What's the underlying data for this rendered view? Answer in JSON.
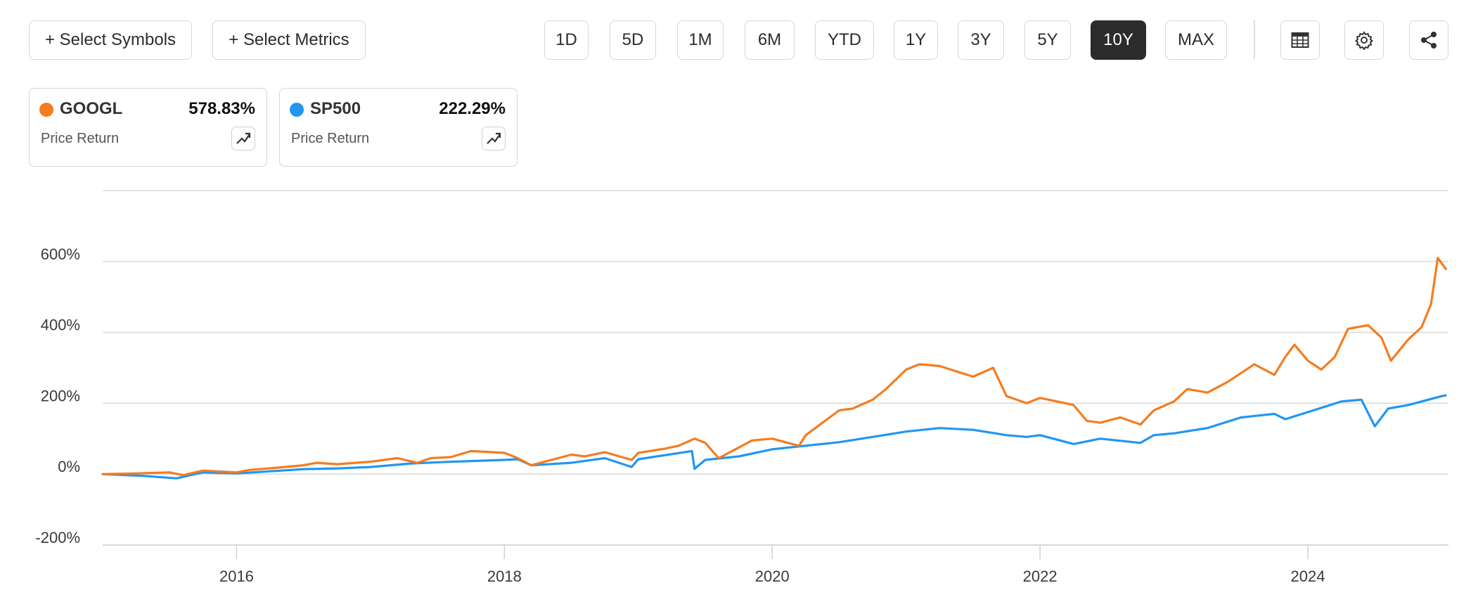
{
  "toolbar": {
    "select_symbols": "+ Select Symbols",
    "select_metrics": "+ Select Metrics",
    "ranges": [
      "1D",
      "5D",
      "1M",
      "6M",
      "YTD",
      "1Y",
      "3Y",
      "5Y",
      "10Y",
      "MAX"
    ],
    "active_range": "10Y",
    "icons": [
      "table-icon",
      "gear-icon",
      "share-icon"
    ]
  },
  "legend": [
    {
      "symbol": "GOOGL",
      "value": "578.83%",
      "metric": "Price Return",
      "color": "#f57c1f"
    },
    {
      "symbol": "SP500",
      "value": "222.29%",
      "metric": "Price Return",
      "color": "#2196f3"
    }
  ],
  "chart_data": {
    "type": "line",
    "title": "",
    "xlabel": "",
    "ylabel": "",
    "xlim": [
      2015.0,
      2025.05
    ],
    "ylim": [
      -200,
      800
    ],
    "x_ticks": [
      2016,
      2018,
      2020,
      2022,
      2024
    ],
    "x_tick_labels": [
      "2016",
      "2018",
      "2020",
      "2022",
      "2024"
    ],
    "y_ticks": [
      -200,
      0,
      200,
      400,
      600
    ],
    "y_tick_labels": [
      "-200%",
      "0%",
      "200%",
      "400%",
      "600%"
    ],
    "grid": "horizontal",
    "series": [
      {
        "name": "GOOGL",
        "color": "#f57c1f",
        "x": [
          2015.0,
          2015.25,
          2015.5,
          2015.6,
          2015.75,
          2016.0,
          2016.1,
          2016.3,
          2016.5,
          2016.6,
          2016.75,
          2017.0,
          2017.2,
          2017.35,
          2017.45,
          2017.6,
          2017.75,
          2018.0,
          2018.1,
          2018.2,
          2018.5,
          2018.6,
          2018.75,
          2018.95,
          2019.0,
          2019.2,
          2019.3,
          2019.42,
          2019.5,
          2019.6,
          2019.75,
          2019.85,
          2020.0,
          2020.2,
          2020.25,
          2020.5,
          2020.6,
          2020.75,
          2020.85,
          2021.0,
          2021.1,
          2021.25,
          2021.5,
          2021.65,
          2021.75,
          2021.9,
          2022.0,
          2022.25,
          2022.35,
          2022.45,
          2022.6,
          2022.75,
          2022.85,
          2023.0,
          2023.1,
          2023.25,
          2023.4,
          2023.5,
          2023.6,
          2023.75,
          2023.83,
          2023.9,
          2024.0,
          2024.1,
          2024.2,
          2024.3,
          2024.45,
          2024.55,
          2024.62,
          2024.75,
          2024.85,
          2024.92,
          2024.97,
          2025.03
        ],
        "y": [
          0,
          2,
          5,
          -3,
          10,
          5,
          12,
          18,
          25,
          32,
          28,
          35,
          45,
          32,
          45,
          48,
          65,
          60,
          45,
          25,
          55,
          50,
          62,
          40,
          60,
          72,
          80,
          100,
          88,
          45,
          75,
          95,
          100,
          80,
          110,
          180,
          185,
          210,
          240,
          295,
          310,
          305,
          275,
          300,
          220,
          200,
          215,
          195,
          150,
          145,
          160,
          140,
          180,
          205,
          240,
          230,
          260,
          285,
          310,
          280,
          330,
          365,
          320,
          295,
          330,
          410,
          420,
          385,
          320,
          380,
          415,
          480,
          610,
          578.83
        ]
      },
      {
        "name": "SP500",
        "color": "#2196f3",
        "x": [
          2015.0,
          2015.3,
          2015.55,
          2015.75,
          2016.0,
          2016.25,
          2016.5,
          2016.75,
          2017.0,
          2017.3,
          2017.6,
          2018.0,
          2018.1,
          2018.2,
          2018.5,
          2018.75,
          2018.95,
          2019.0,
          2019.4,
          2019.42,
          2019.5,
          2019.75,
          2020.0,
          2020.5,
          2020.75,
          2021.0,
          2021.25,
          2021.5,
          2021.75,
          2021.9,
          2022.0,
          2022.25,
          2022.45,
          2022.75,
          2022.85,
          2023.0,
          2023.25,
          2023.5,
          2023.75,
          2023.83,
          2024.0,
          2024.25,
          2024.4,
          2024.5,
          2024.6,
          2024.75,
          2025.0,
          2025.03
        ],
        "y": [
          0,
          -5,
          -12,
          5,
          2,
          8,
          14,
          16,
          20,
          30,
          35,
          40,
          42,
          25,
          32,
          45,
          20,
          42,
          65,
          15,
          40,
          50,
          70,
          90,
          105,
          120,
          130,
          125,
          110,
          105,
          110,
          85,
          100,
          88,
          110,
          115,
          130,
          160,
          170,
          155,
          175,
          205,
          210,
          135,
          185,
          195,
          220,
          222.29
        ]
      }
    ]
  }
}
